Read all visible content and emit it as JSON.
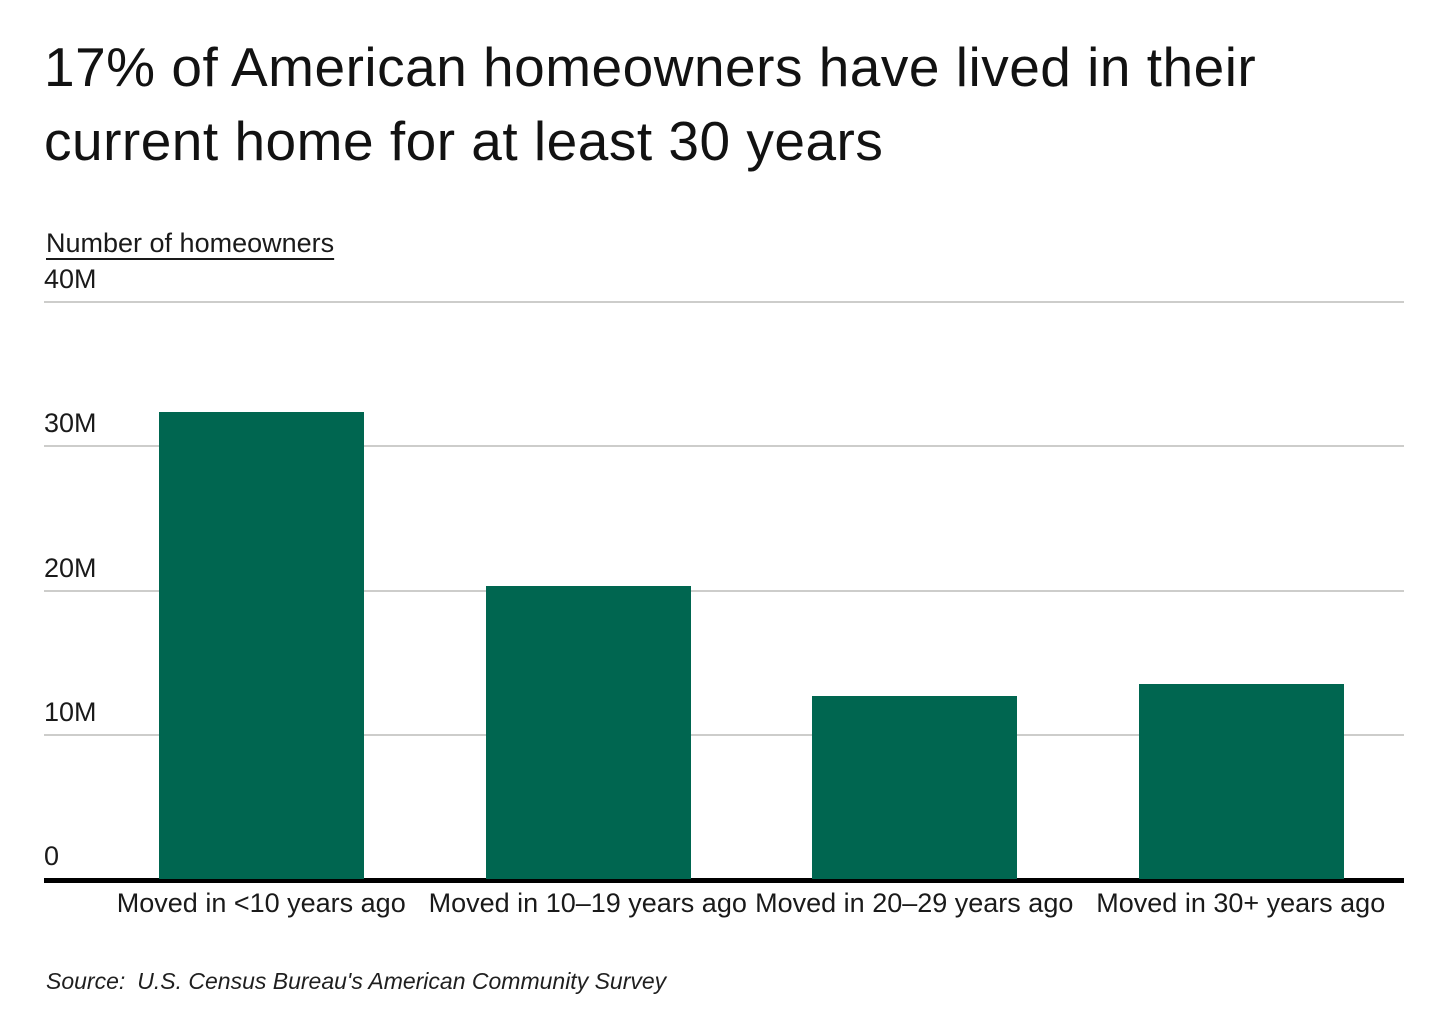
{
  "title": "17% of American homeowners have lived in their current home for at least 30 years",
  "y_axis": {
    "label": "Number of homeowners",
    "ticks": [
      "40M",
      "30M",
      "20M",
      "10M",
      "0"
    ]
  },
  "source": {
    "prefix": "Source:",
    "text": "U.S. Census Bureau's American Community Survey"
  },
  "colors": {
    "bar": "#006650",
    "gridline": "#cdcdcb",
    "baseline": "#000000",
    "text": "#161616"
  },
  "chart_data": {
    "type": "bar",
    "title": "17% of American homeowners have lived in their current home for at least 30 years",
    "categories": [
      "Moved in <10 years ago",
      "Moved in 10–19 years ago",
      "Moved in 20–29 years ago",
      "Moved in 30+ years ago"
    ],
    "values": [
      32.4,
      20.3,
      12.7,
      13.5
    ],
    "unit": "millions of homeowners",
    "xlabel": "",
    "ylabel": "Number of homeowners",
    "ylim": [
      0,
      40
    ],
    "ytick_values": [
      40,
      30,
      20,
      10,
      0
    ],
    "ytick_labels": [
      "40M",
      "30M",
      "20M",
      "10M",
      "0"
    ],
    "grid": "horizontal",
    "legend": "none",
    "bar_color": "#006650"
  }
}
